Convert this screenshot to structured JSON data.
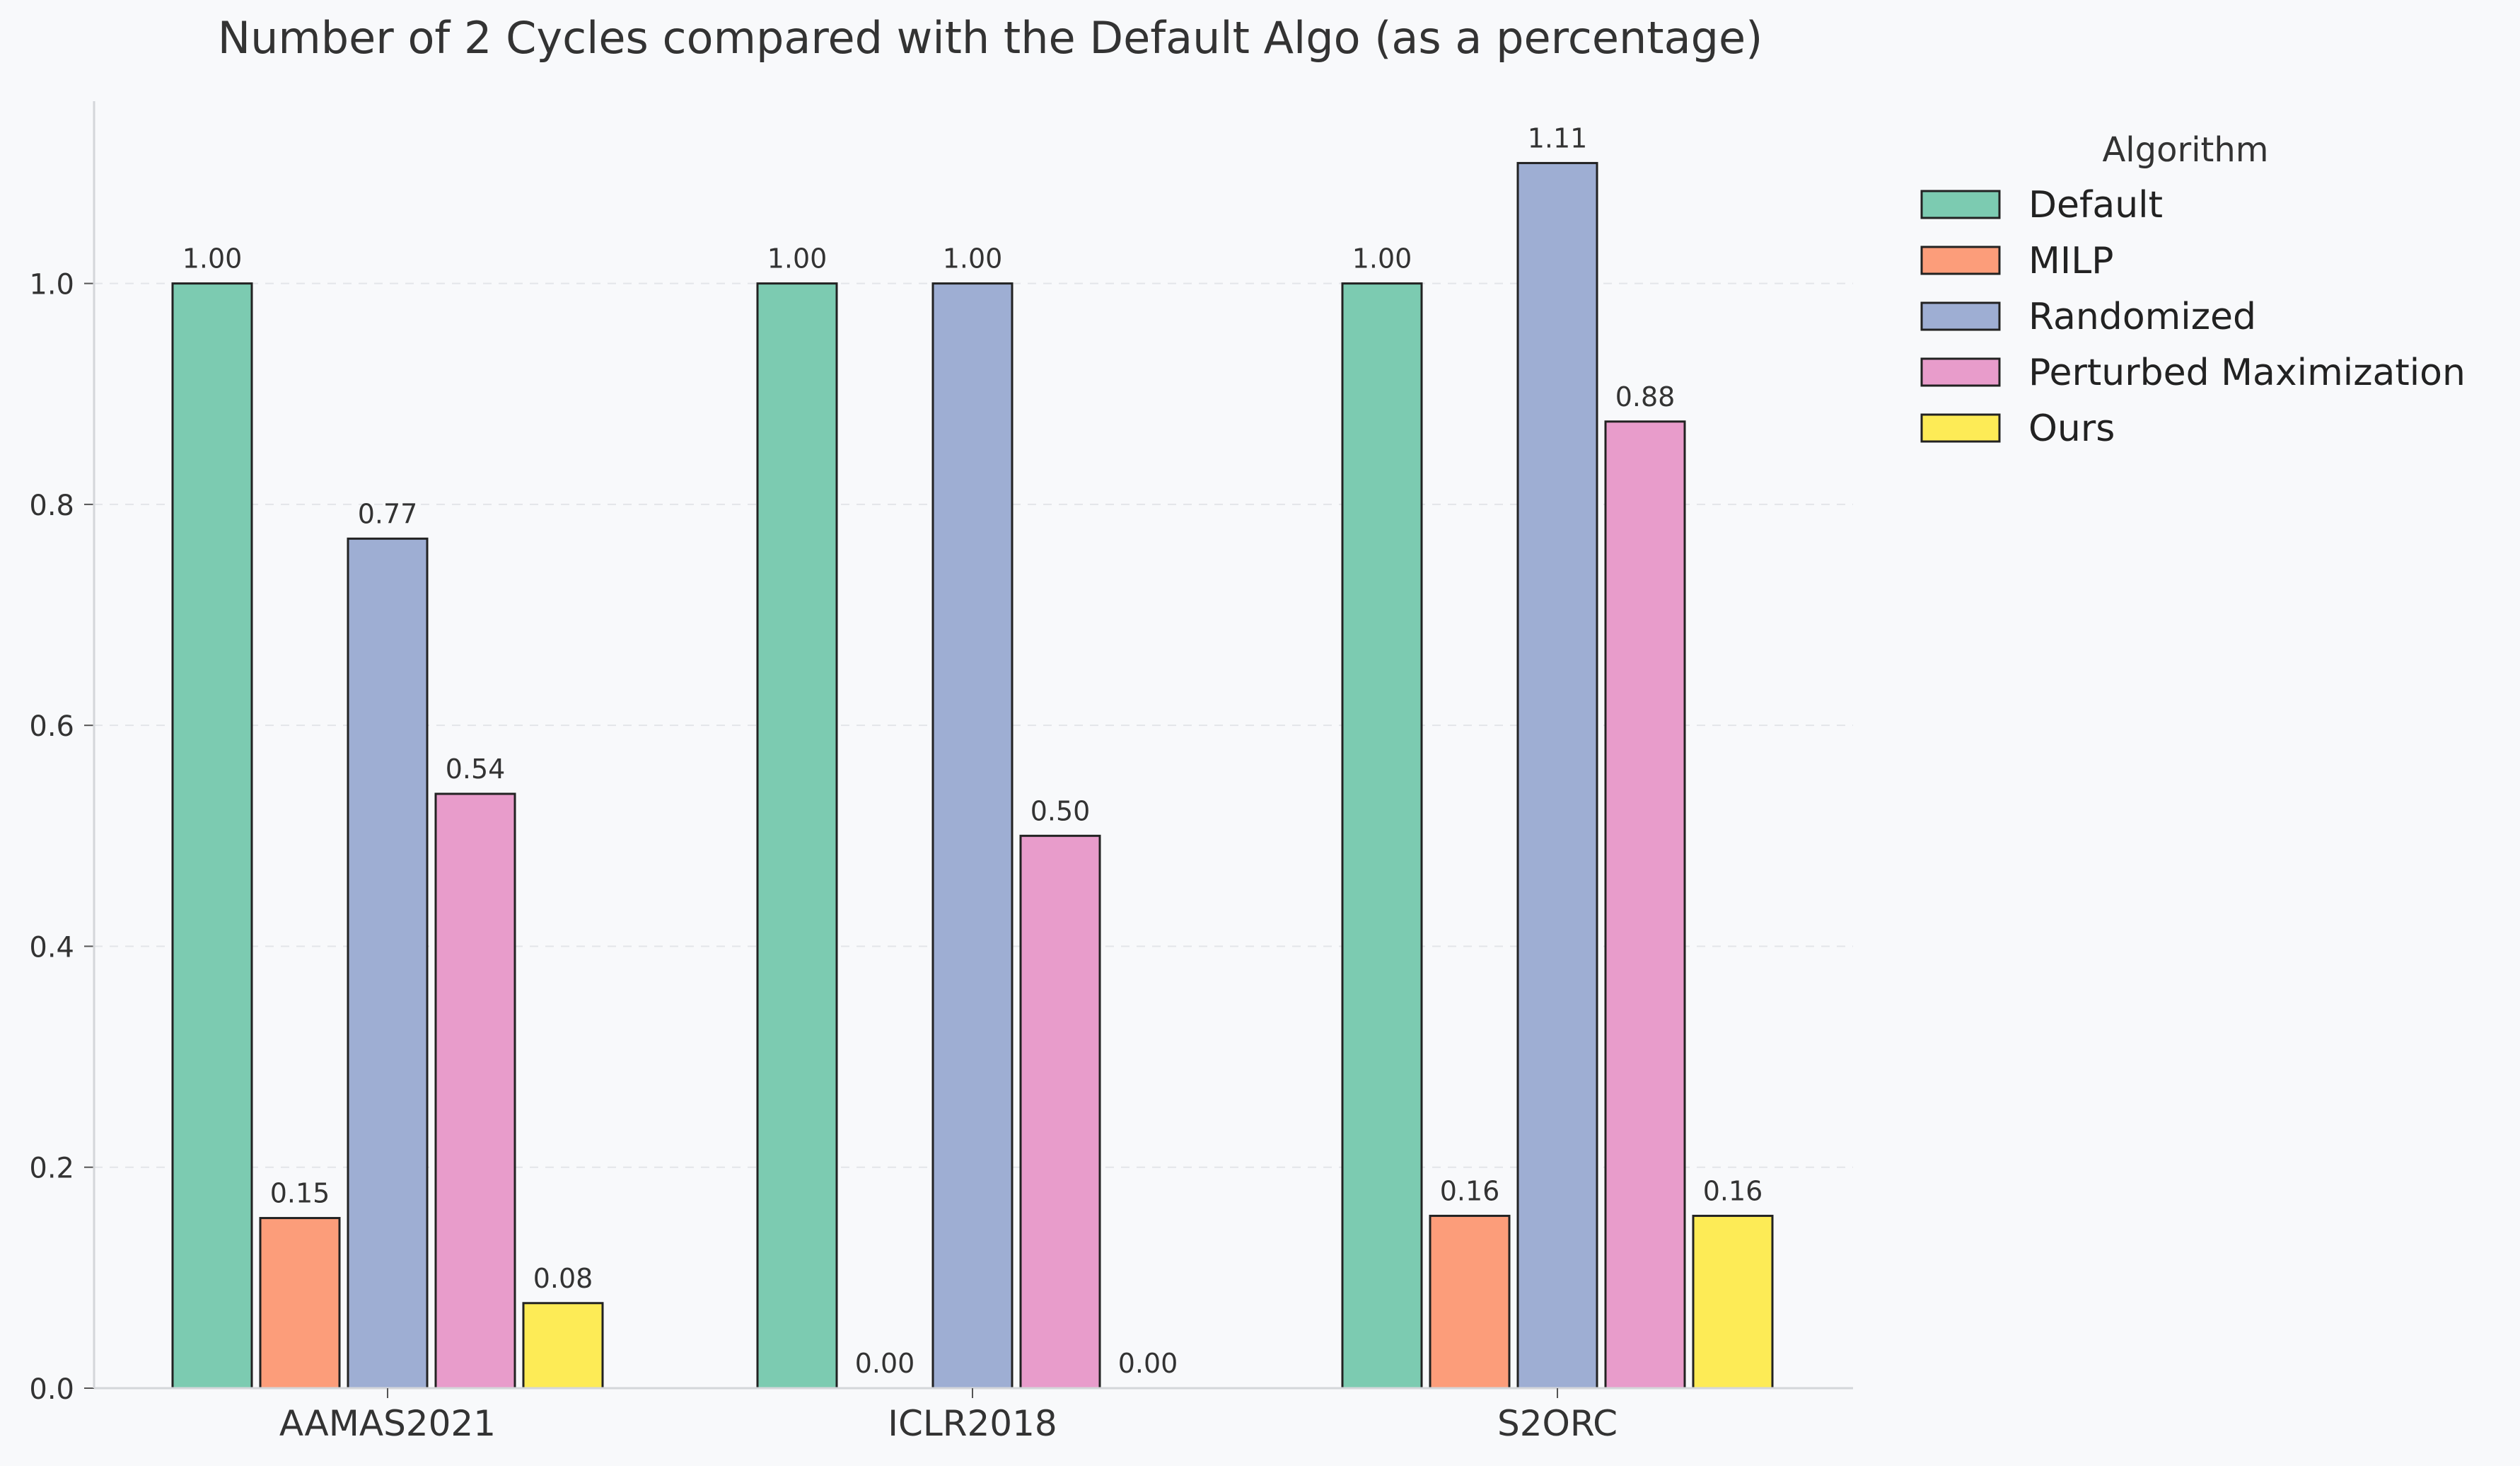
{
  "chart_data": {
    "type": "bar",
    "title": "Number of 2 Cycles compared with the Default Algo (as a percentage)",
    "xlabel": "",
    "ylabel": "",
    "categories": [
      "AAMAS2021",
      "ICLR2018",
      "S2ORC"
    ],
    "ylim": [
      0,
      1.165
    ],
    "yticks": [
      0.0,
      0.2,
      0.4,
      0.6,
      0.8,
      1.0
    ],
    "ytick_labels": [
      "0.0",
      "0.2",
      "0.4",
      "0.6",
      "0.8",
      "1.0"
    ],
    "grid": "y-dashed",
    "legend": {
      "title": "Algorithm",
      "placement": "outside-right"
    },
    "series": [
      {
        "name": "Default",
        "color": "#7ccbb1",
        "values": [
          1.0,
          1.0,
          1.0
        ],
        "labels": [
          "1.00",
          "1.00",
          "1.00"
        ]
      },
      {
        "name": "MILP",
        "color": "#fc9d7a",
        "values": [
          0.154,
          0.0,
          0.156
        ],
        "labels": [
          "0.15",
          "0.00",
          "0.16"
        ]
      },
      {
        "name": "Randomized",
        "color": "#9eaed3",
        "values": [
          0.769,
          1.0,
          1.109
        ],
        "labels": [
          "0.77",
          "1.00",
          "1.11"
        ]
      },
      {
        "name": "Perturbed Maximization",
        "color": "#e89ccb",
        "values": [
          0.538,
          0.5,
          0.875
        ],
        "labels": [
          "0.54",
          "0.50",
          "0.88"
        ]
      },
      {
        "name": "Ours",
        "color": "#fdeb56",
        "values": [
          0.077,
          0.0,
          0.156
        ],
        "labels": [
          "0.08",
          "0.00",
          "0.16"
        ]
      }
    ]
  }
}
